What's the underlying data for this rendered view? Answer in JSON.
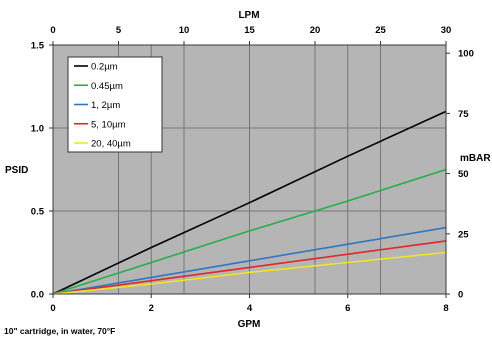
{
  "chart_data": {
    "type": "line",
    "xlabel": "GPM",
    "xlim": [
      0,
      8
    ],
    "xtick_labels": [
      "0",
      "2",
      "4",
      "6",
      "8"
    ],
    "x2label": "LPM",
    "x2lim": [
      0,
      30
    ],
    "x2tick_labels": [
      "0",
      "5",
      "10",
      "15",
      "20",
      "25",
      "30"
    ],
    "ylabel": "PSID",
    "ylim": [
      0,
      1.5
    ],
    "ytick_labels": [
      "0.0",
      "0.5",
      "1.0",
      "1.5"
    ],
    "y2label": "mBAR",
    "y2lim": [
      0,
      103.4
    ],
    "y2tick_labels": [
      "0",
      "25",
      "50",
      "75",
      "100"
    ],
    "grid": true,
    "legend_position": "top-left",
    "plot_background": "#b5b5b5",
    "grid_color": "#767676",
    "x": [
      0,
      2,
      4,
      6,
      8
    ],
    "series": [
      {
        "name": "0.2µm",
        "color": "#000000",
        "values": [
          0,
          0.28,
          0.55,
          0.83,
          1.1
        ]
      },
      {
        "name": "0.45µm",
        "color": "#22b04a",
        "values": [
          0,
          0.19,
          0.38,
          0.56,
          0.75
        ]
      },
      {
        "name": "1, 2µm",
        "color": "#2f77c4",
        "values": [
          0,
          0.1,
          0.2,
          0.3,
          0.4
        ]
      },
      {
        "name": "5, 10µm",
        "color": "#e2262b",
        "values": [
          0,
          0.08,
          0.16,
          0.24,
          0.32
        ]
      },
      {
        "name": "20, 40µm",
        "color": "#f3e51f",
        "values": [
          0,
          0.06,
          0.13,
          0.19,
          0.25
        ]
      }
    ],
    "note": "10\" cartridge, in water, 70°F"
  }
}
